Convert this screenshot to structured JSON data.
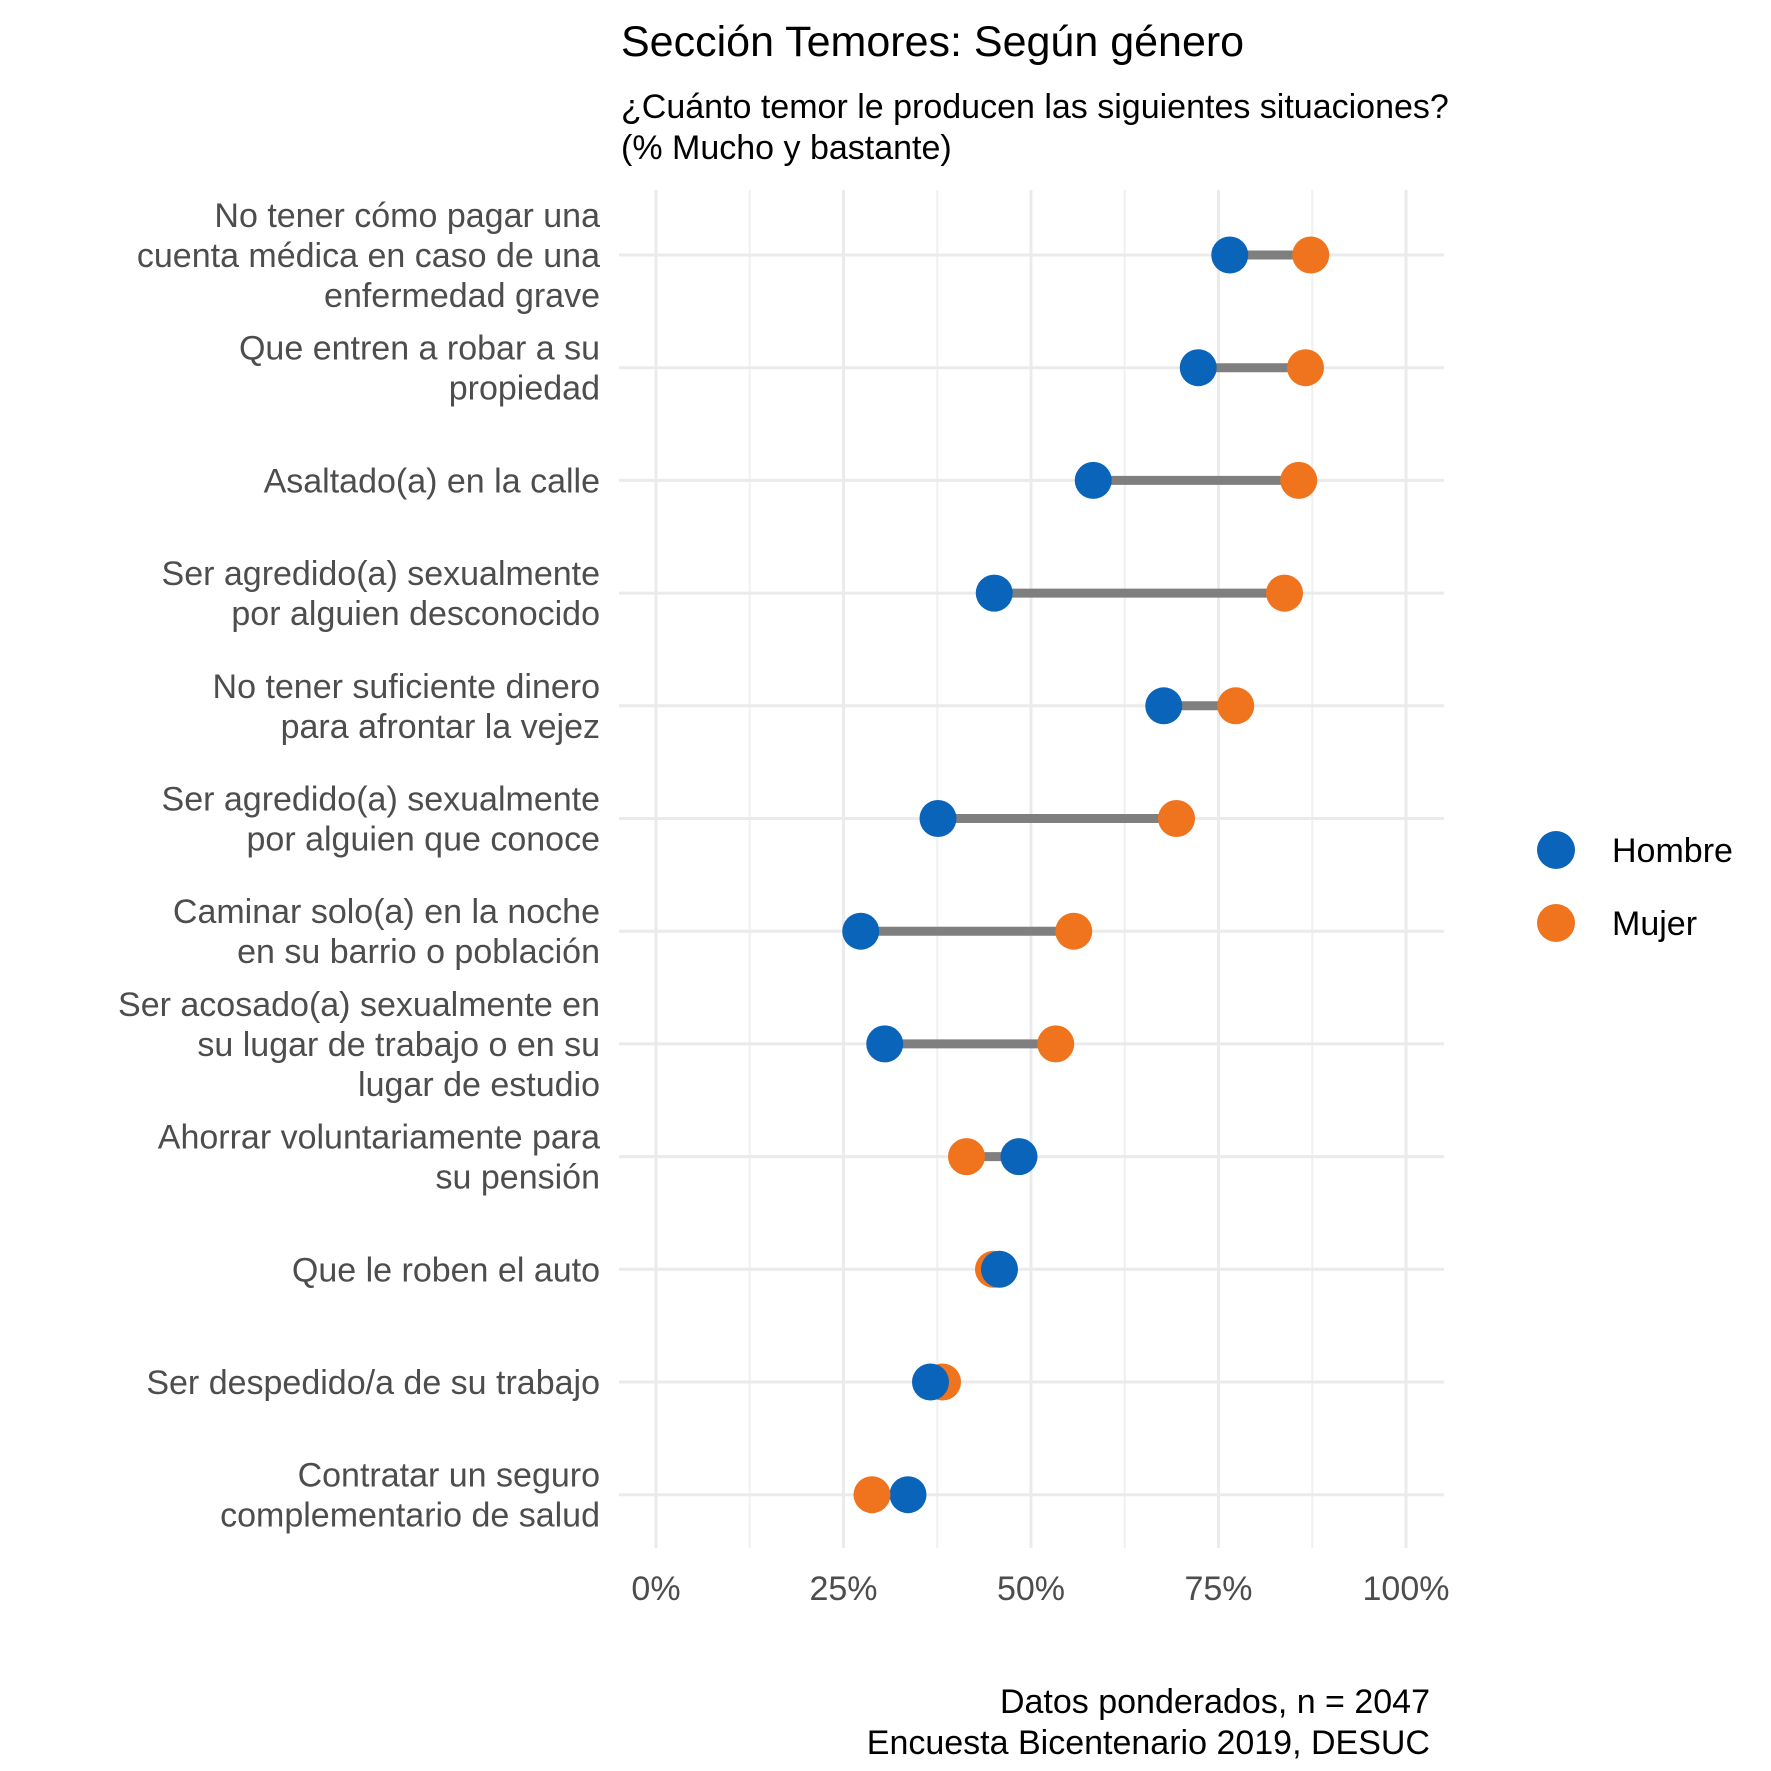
{
  "chart_data": {
    "type": "dumbbell",
    "title": "Sección Temores: Según género",
    "subtitle": [
      "¿Cuánto temor le producen las siguientes situaciones?",
      " (% Mucho y bastante)"
    ],
    "caption": [
      "Datos ponderados, n = 2047",
      "Encuesta Bicentenario 2019, DESUC"
    ],
    "xlim": [
      0,
      1
    ],
    "x_ticks": [
      {
        "value": 0,
        "label": "0%"
      },
      {
        "value": 0.25,
        "label": "25%"
      },
      {
        "value": 0.5,
        "label": "50%"
      },
      {
        "value": 0.75,
        "label": "75%"
      },
      {
        "value": 1,
        "label": "100%"
      }
    ],
    "series": [
      {
        "name": "Hombre",
        "color": "#0a64b9"
      },
      {
        "name": "Mujer",
        "color": "#f0731e"
      }
    ],
    "categories": [
      {
        "label": [
          "No tener cómo pagar una",
          "cuenta médica en caso de una",
          "enfermedad grave"
        ],
        "hombre": 0.765,
        "mujer": 0.873
      },
      {
        "label": [
          "Que entren a robar a su",
          "propiedad"
        ],
        "hombre": 0.723,
        "mujer": 0.866
      },
      {
        "label": [
          "Asaltado(a) en la calle"
        ],
        "hombre": 0.583,
        "mujer": 0.857
      },
      {
        "label": [
          "Ser agredido(a) sexualmente",
          "por alguien desconocido"
        ],
        "hombre": 0.451,
        "mujer": 0.838
      },
      {
        "label": [
          "No tener suficiente dinero",
          "para afrontar la vejez"
        ],
        "hombre": 0.677,
        "mujer": 0.773
      },
      {
        "label": [
          "Ser agredido(a) sexualmente",
          "por alguien que conoce"
        ],
        "hombre": 0.376,
        "mujer": 0.694
      },
      {
        "label": [
          "Caminar solo(a) en la noche",
          "en su barrio o población"
        ],
        "hombre": 0.273,
        "mujer": 0.557
      },
      {
        "label": [
          "Ser acosado(a) sexualmente en",
          "su lugar de trabajo o en su",
          "lugar de estudio"
        ],
        "hombre": 0.305,
        "mujer": 0.533
      },
      {
        "label": [
          "Ahorrar voluntariamente para",
          "su pensión"
        ],
        "hombre": 0.484,
        "mujer": 0.414
      },
      {
        "label": [
          "Que le roben el auto"
        ],
        "hombre": 0.458,
        "mujer": 0.45
      },
      {
        "label": [
          "Ser despedido/a de su trabajo"
        ],
        "hombre": 0.366,
        "mujer": 0.382
      },
      {
        "label": [
          "Contratar un seguro",
          "complementario de salud"
        ],
        "hombre": 0.336,
        "mujer": 0.288
      }
    ]
  }
}
